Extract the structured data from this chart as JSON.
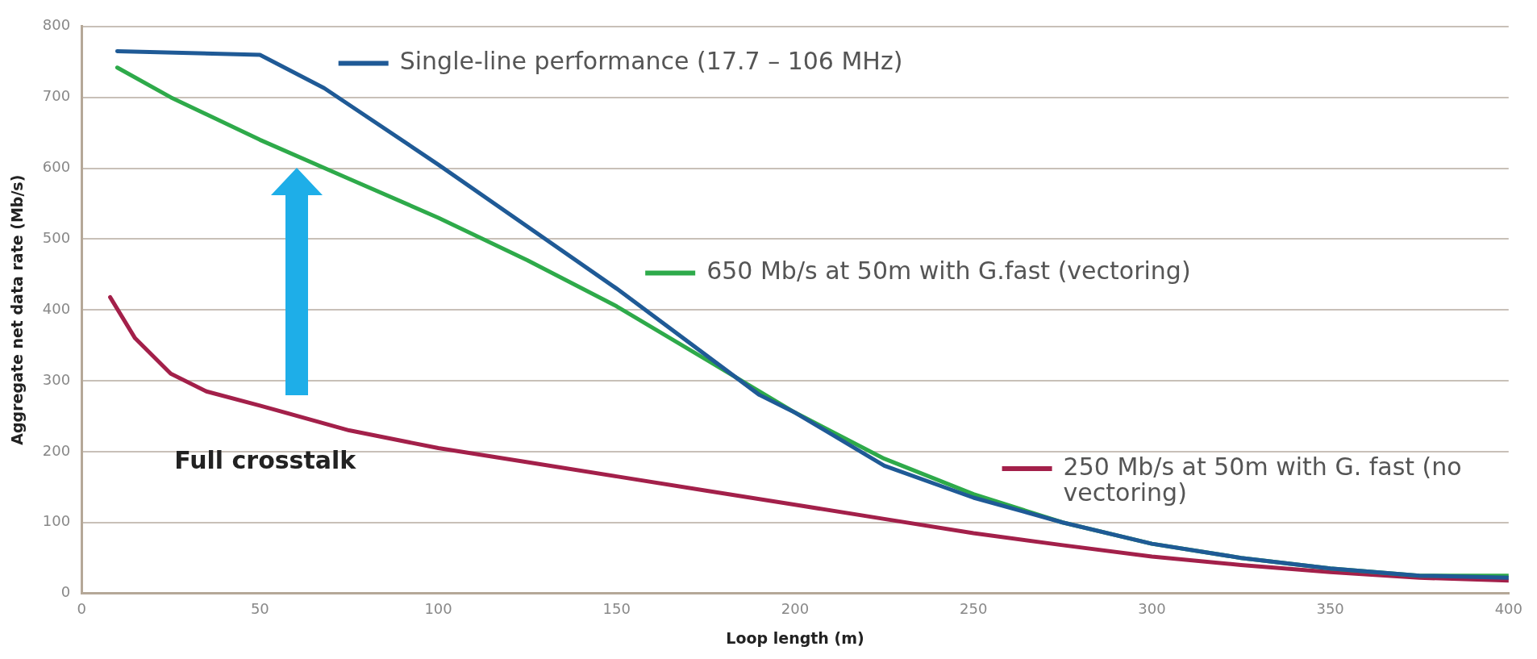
{
  "chart_data": {
    "type": "line",
    "xlabel": "Loop length (m)",
    "ylabel": "Aggregate net data rate (Mb/s)",
    "xlim": [
      0,
      400
    ],
    "xticks": [
      0,
      50,
      100,
      150,
      200,
      250,
      300,
      350,
      400
    ],
    "ylim": [
      0,
      800
    ],
    "yticks": [
      0,
      100,
      200,
      300,
      400,
      500,
      600,
      700,
      800
    ],
    "grid": "y",
    "legend": "right",
    "marker": "none",
    "line_style": "solid",
    "annotations": [
      "Full crosstalk"
    ],
    "series": [
      {
        "name": "Single-line performance (17.7 – 106 MHz)",
        "color": "#1f5a96",
        "x": [
          10,
          50,
          68,
          100,
          150,
          190,
          200,
          225,
          250,
          275,
          300,
          325,
          350,
          375,
          400
        ],
        "values": [
          765,
          760,
          713,
          605,
          430,
          280,
          255,
          180,
          135,
          100,
          70,
          50,
          35,
          25,
          22
        ]
      },
      {
        "name": "650 Mb/s at 50m with G.fast (vectoring)",
        "color": "#2eaa4a",
        "x": [
          10,
          25,
          50,
          75,
          100,
          125,
          150,
          175,
          200,
          225,
          250,
          275,
          300,
          325,
          350,
          375,
          400
        ],
        "values": [
          742,
          700,
          640,
          585,
          530,
          470,
          405,
          330,
          255,
          190,
          140,
          100,
          70,
          50,
          35,
          25,
          25
        ]
      },
      {
        "name": "250 Mb/s at 50m with G. fast (no vectoring)",
        "color": "#a3204a",
        "x": [
          8,
          15,
          25,
          35,
          50,
          75,
          100,
          125,
          150,
          175,
          200,
          225,
          250,
          275,
          300,
          325,
          350,
          375,
          400
        ],
        "values": [
          418,
          360,
          310,
          285,
          265,
          230,
          205,
          185,
          165,
          145,
          125,
          105,
          85,
          68,
          52,
          40,
          30,
          22,
          18
        ]
      }
    ]
  }
}
